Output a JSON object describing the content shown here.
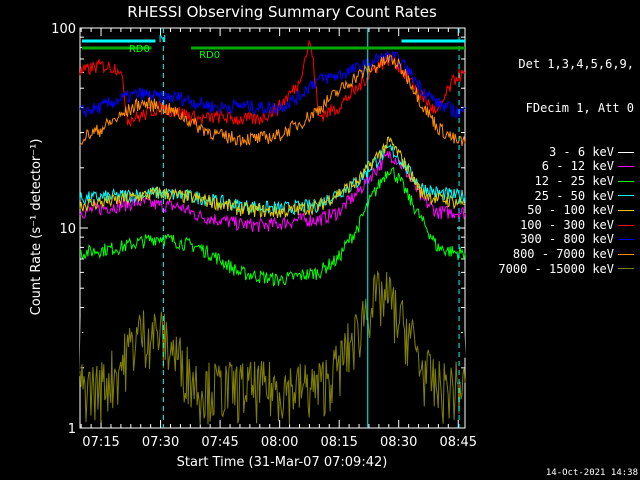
{
  "chart_data": {
    "type": "line",
    "title": "RHESSI Observing Summary Count Rates",
    "xlabel": "Start Time (31-Mar-07 07:09:42)",
    "ylabel": "Count Rate (s⁻¹ detector⁻¹)",
    "y_scale": "log",
    "ylim": [
      1,
      100
    ],
    "xlim_minutes": [
      0,
      37.3
    ],
    "x_tick_labels": [
      "07:15",
      "07:30",
      "07:45",
      "08:00",
      "08:15",
      "08:30",
      "08:45"
    ],
    "y_tick_labels": [
      "1",
      "10",
      "100"
    ],
    "header_lines": [
      "Det 1,3,4,5,6,9,",
      "FDecim 1, Att 0"
    ],
    "flag_labels": [
      "N",
      "RD0",
      "RD0"
    ],
    "timestamp": "14-Oct-2021 14:38",
    "series": [
      {
        "name": "3 - 6 keV",
        "color": "#000000",
        "x_min": [
          0,
          5,
          10,
          15,
          20,
          25,
          30,
          35,
          40,
          45,
          50,
          55,
          60,
          65,
          70,
          72,
          75,
          78,
          80,
          83,
          86,
          90,
          92,
          95
        ],
        "values": [
          2.8,
          2.9,
          5,
          6.5,
          8,
          7,
          4,
          3.5,
          3.5,
          3,
          3,
          3,
          3.2,
          4,
          8,
          10,
          13,
          15.5,
          14,
          10,
          5,
          3,
          2.5,
          3
        ]
      },
      {
        "name": "6 - 12 keV",
        "color": "#ff00ff",
        "x_min": [
          0,
          5,
          10,
          15,
          20,
          25,
          30,
          35,
          40,
          45,
          50,
          55,
          60,
          65,
          70,
          75,
          78,
          80,
          83,
          86,
          90,
          95
        ],
        "values": [
          12,
          12.5,
          13,
          13.5,
          13,
          12.8,
          11.5,
          11,
          10.5,
          10.3,
          10.5,
          11,
          11,
          12,
          15,
          20,
          23.5,
          22,
          18,
          14,
          12,
          12
        ]
      },
      {
        "name": "12 - 25 keV",
        "color": "#00ff00",
        "x_min": [
          0,
          10,
          20,
          30,
          40,
          50,
          60,
          65,
          70,
          75,
          78,
          80,
          83,
          86,
          90,
          95
        ],
        "values": [
          7.5,
          8,
          9,
          8,
          6,
          5.5,
          6,
          7,
          10,
          16,
          20,
          18,
          14,
          11,
          8,
          7.5
        ]
      },
      {
        "name": "25 - 50 keV",
        "color": "#00ffff",
        "x_min": [
          0,
          10,
          20,
          30,
          40,
          50,
          60,
          70,
          75,
          78,
          80,
          83,
          86,
          90,
          95
        ],
        "values": [
          14,
          14.5,
          15,
          14.2,
          13,
          12.5,
          13,
          17,
          22,
          25,
          23,
          19,
          16,
          15,
          14.5
        ]
      },
      {
        "name": "50 - 100 keV",
        "color": "#e6c800",
        "x_min": [
          0,
          10,
          20,
          30,
          40,
          50,
          60,
          70,
          75,
          78,
          80,
          83,
          86,
          90,
          95
        ],
        "values": [
          13,
          13.8,
          15,
          14,
          12.5,
          12,
          12.8,
          17,
          23,
          27,
          24,
          19,
          15,
          14,
          13.5
        ]
      },
      {
        "name": "100 - 300 keV",
        "color": "#ff0000",
        "x_min": [
          0,
          5,
          10,
          12,
          15,
          20,
          25,
          30,
          35,
          40,
          45,
          50,
          55,
          58,
          60,
          65,
          70,
          75,
          78,
          80,
          83,
          86,
          90,
          95
        ],
        "values": [
          60,
          65,
          63,
          35,
          36,
          40,
          38,
          35,
          36,
          35,
          35,
          40,
          52,
          85,
          36,
          40,
          50,
          65,
          70,
          66,
          55,
          46,
          37,
          58
        ]
      },
      {
        "name": "300 - 800 keV",
        "color": "#0000ff",
        "x_min": [
          0,
          5,
          10,
          15,
          20,
          25,
          30,
          35,
          40,
          45,
          50,
          55,
          58,
          60,
          65,
          70,
          75,
          78,
          80,
          83,
          86,
          90,
          95
        ],
        "values": [
          38,
          40,
          44,
          47,
          45,
          45,
          42,
          40,
          41,
          40,
          40,
          45,
          52,
          55,
          58,
          63,
          70,
          72,
          70,
          60,
          50,
          42,
          38
        ]
      },
      {
        "name": "800 - 7000 keV",
        "color": "#ff8c00",
        "x_min": [
          0,
          5,
          10,
          15,
          20,
          25,
          30,
          35,
          40,
          45,
          50,
          55,
          60,
          65,
          70,
          75,
          78,
          80,
          83,
          86,
          90,
          95
        ],
        "values": [
          28,
          31,
          36,
          42,
          41,
          37,
          32,
          29,
          28,
          28,
          29,
          33,
          39,
          48,
          58,
          65,
          70,
          66,
          55,
          42,
          32,
          27
        ]
      },
      {
        "name": "7000 - 15000 keV",
        "color": "#808000",
        "x_min": [
          0,
          5,
          10,
          15,
          20,
          25,
          30,
          35,
          40,
          45,
          50,
          55,
          60,
          65,
          70,
          72,
          75,
          78,
          80,
          83,
          86,
          90,
          95
        ],
        "values": [
          1.6,
          1.6,
          2,
          3,
          3,
          2.2,
          1.6,
          1.6,
          1.6,
          1.6,
          1.6,
          1.6,
          1.6,
          2,
          3,
          4,
          4.5,
          4.5,
          3.5,
          3,
          2,
          1.6,
          1.6
        ]
      }
    ],
    "annotations": [
      {
        "label": "N",
        "color": "#00ffff"
      },
      {
        "label": "RD0",
        "color": "#00ff00"
      },
      {
        "label": "RD0",
        "color": "#00ff00"
      }
    ]
  }
}
